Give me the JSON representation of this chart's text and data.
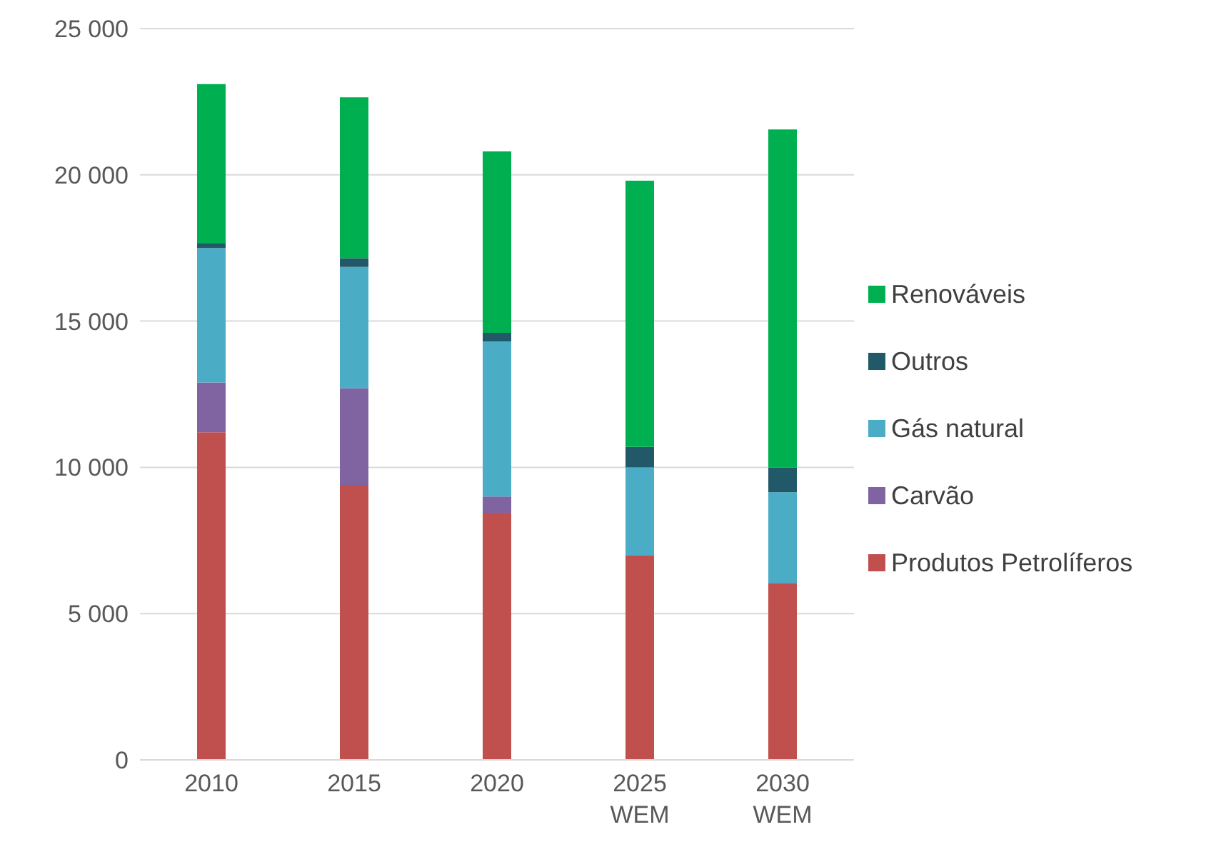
{
  "chart_data": {
    "type": "bar",
    "stacked": true,
    "categories": [
      "2010",
      "2015",
      "2020",
      "2025 WEM",
      "2030 WEM"
    ],
    "series": [
      {
        "name": "Produtos Petrolíferos",
        "color": "#c0504d",
        "values": [
          11200,
          9400,
          8450,
          7000,
          6050
        ]
      },
      {
        "name": "Carvão",
        "color": "#8064a2",
        "values": [
          1700,
          3300,
          550,
          0,
          0
        ]
      },
      {
        "name": "Gás natural",
        "color": "#4bacc6",
        "values": [
          4600,
          4150,
          5300,
          3000,
          3100
        ]
      },
      {
        "name": "Outros",
        "color": "#215968",
        "values": [
          150,
          300,
          300,
          700,
          850
        ]
      },
      {
        "name": "Renováveis",
        "color": "#00b050",
        "values": [
          5450,
          5500,
          6200,
          9100,
          11550
        ]
      }
    ],
    "ylim": [
      0,
      25000
    ],
    "yticks": [
      0,
      {
        "value": 5000,
        "label": "5 000"
      },
      {
        "value": 10000,
        "label": "10 000"
      },
      {
        "value": 15000,
        "label": "15 000"
      },
      {
        "value": 20000,
        "label": "20 000"
      },
      {
        "value": 25000,
        "label": "25 000"
      }
    ],
    "grid": "y",
    "legend": "right"
  }
}
